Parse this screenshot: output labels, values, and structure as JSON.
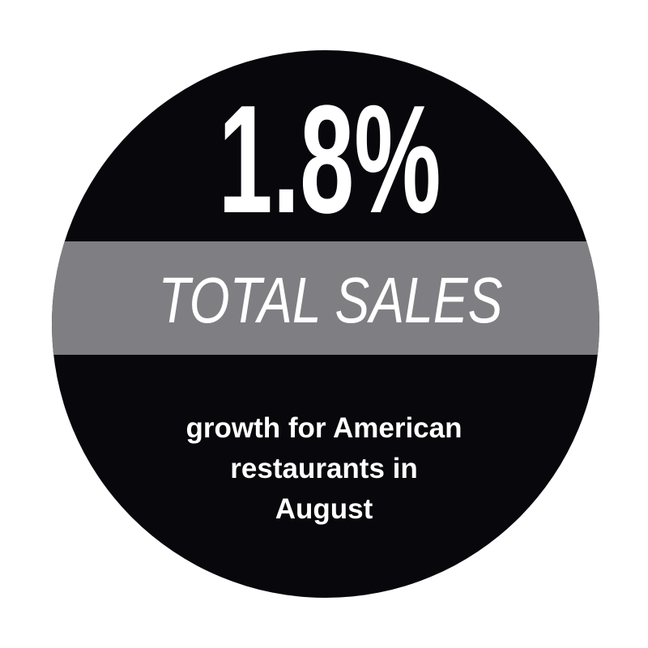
{
  "badge": {
    "stat": "1.8%",
    "label": "TOTAL SALES",
    "caption": [
      "growth for American",
      "restaurants in",
      "August"
    ]
  }
}
